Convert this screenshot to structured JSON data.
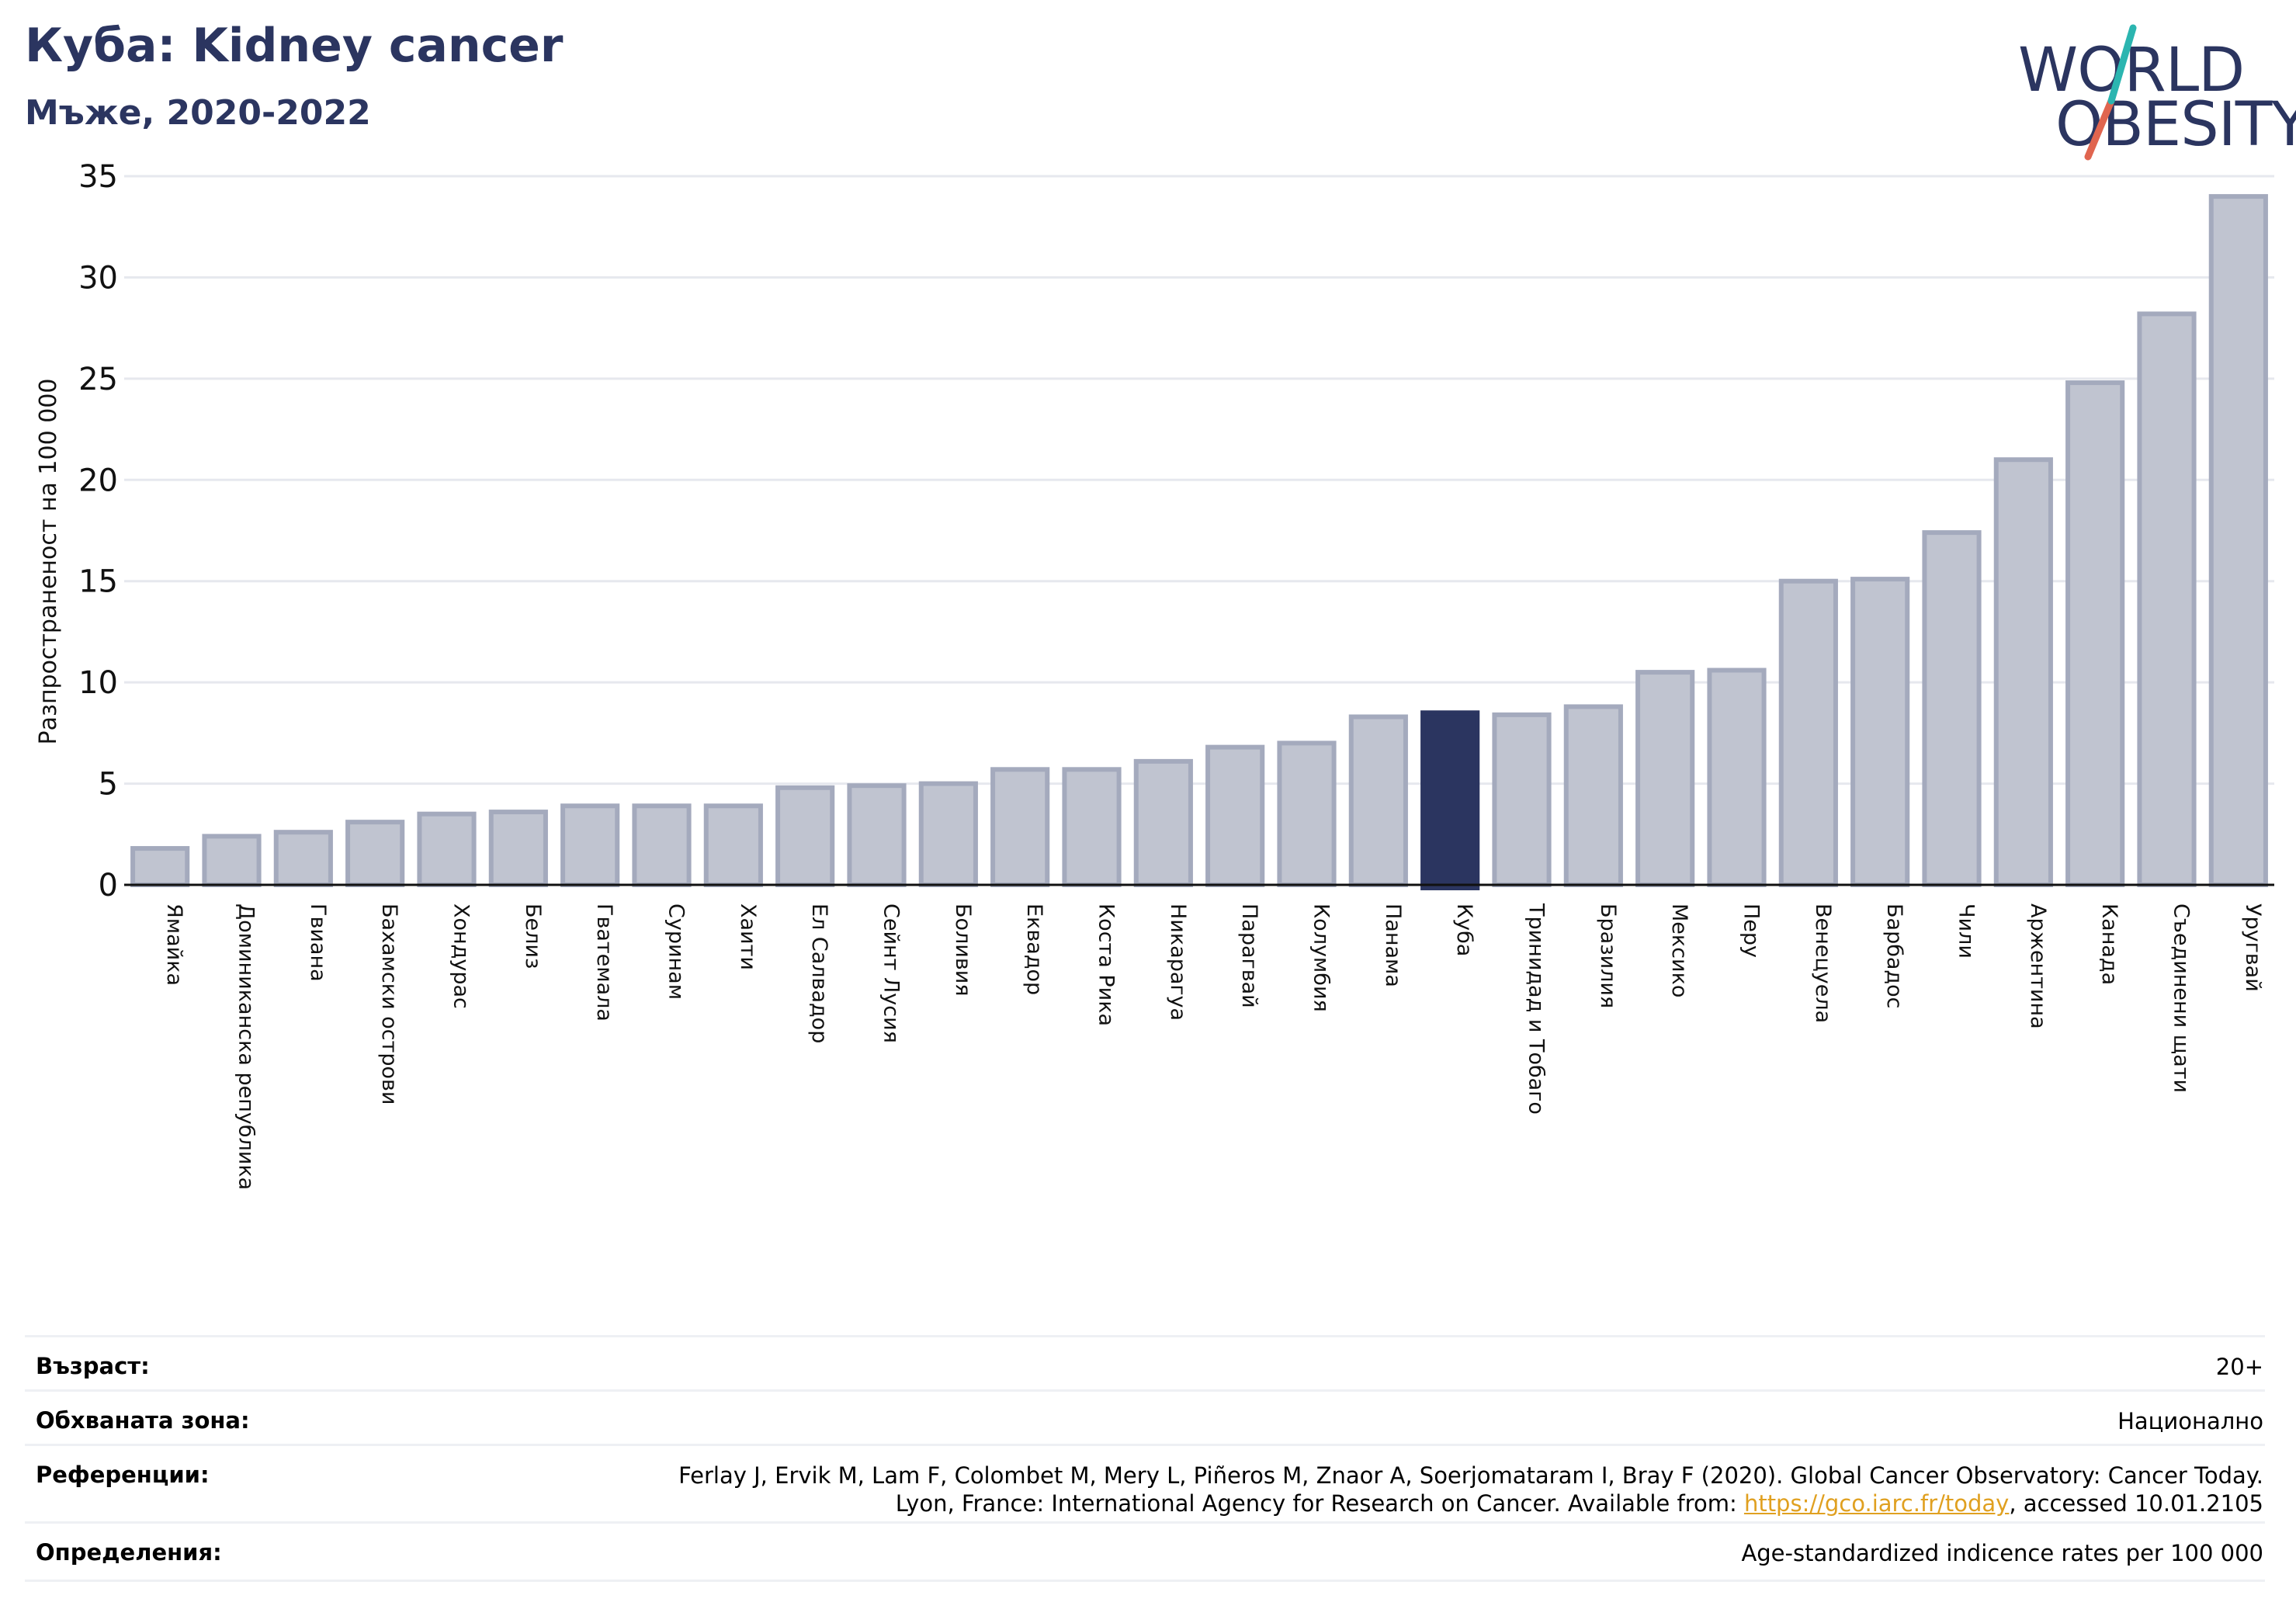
{
  "header": {
    "title": "Куба: Kidney cancer",
    "subtitle": "Мъже, 2020-2022"
  },
  "logo": {
    "line1": "WORLD",
    "line2": "OBESITY"
  },
  "chart_data": {
    "type": "bar",
    "title": "Куба: Kidney cancer",
    "ylabel": "Разпространеност  на 100 000",
    "ylim": [
      0,
      35
    ],
    "yticks": [
      0,
      5,
      10,
      15,
      20,
      25,
      30,
      35
    ],
    "grid": true,
    "highlight": "Куба",
    "colors": {
      "bar": "#c0c4d0",
      "bar_edge": "#a4aabd",
      "highlight": "#2b3560"
    },
    "categories": [
      "Ямайка",
      "Доминиканска република",
      "Гвиана",
      "Бахамски острови",
      "Хондурас",
      "Белиз",
      "Гватемала",
      "Суринам",
      "Хаити",
      "Ел Салвадор",
      "Сейнт Лусия",
      "Боливия",
      "Еквадор",
      "Коста Рика",
      "Никарагуа",
      "Парагвай",
      "Колумбия",
      "Панама",
      "Куба",
      "Тринидад и Тобаго",
      "Бразилия",
      "Мексико",
      "Перу",
      "Венецуела",
      "Барбадос",
      "Чили",
      "Аржентина",
      "Канада",
      "Съединени щати",
      "Уругвай"
    ],
    "values": [
      1.8,
      2.4,
      2.6,
      3.1,
      3.5,
      3.6,
      3.9,
      3.9,
      3.9,
      4.8,
      4.9,
      5.0,
      5.7,
      5.7,
      6.1,
      6.8,
      7.0,
      8.3,
      8.5,
      8.4,
      8.8,
      10.5,
      10.6,
      15.0,
      15.1,
      17.4,
      21.0,
      24.8,
      28.2,
      34.0
    ]
  },
  "info": {
    "age_label": "Възраст:",
    "age_value": "20+",
    "area_label": "Обхваната зона:",
    "area_value": "Национално",
    "ref_label": "Референции:",
    "ref_line1": "Ferlay J, Ervik M, Lam F, Colombet M, Mery L, Piñeros M, Znaor A, Soerjomataram I, Bray F (2020). Global Cancer Observatory: Cancer Today.",
    "ref_line2_pre": "Lyon, France: International Agency for Research on Cancer. Available from: ",
    "ref_link": "https://gco.iarc.fr/today",
    "ref_line2_post": ", accessed 10.01.2105",
    "def_label": "Определения:",
    "def_value": "Age-standardized indicence rates per 100 000"
  }
}
